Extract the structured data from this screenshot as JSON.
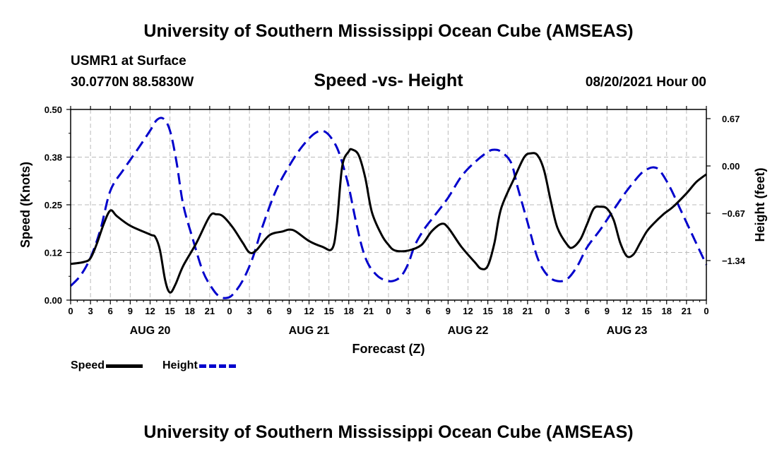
{
  "header": {
    "title": "University of Southern Mississippi Ocean Cube (AMSEAS)",
    "station": "USMR1 at Surface",
    "coords": "30.0770N  88.5830W",
    "chart_title": "Speed -vs- Height",
    "date": "08/20/2021 Hour 00"
  },
  "footer": {
    "title": "University of Southern Mississippi Ocean Cube (AMSEAS)"
  },
  "legend": {
    "speed": "Speed",
    "height": "Height"
  },
  "colors": {
    "speed": "#000000",
    "height": "#0000cc",
    "grid": "#bbbbbb"
  },
  "chart_data": {
    "type": "line",
    "title": "Speed -vs- Height",
    "xlabel": "Forecast (Z)",
    "ylabel": "Speed (Knots)",
    "y2label": "Height (feet)",
    "xlim": [
      0,
      96
    ],
    "ylim": [
      0,
      0.5
    ],
    "y2lim": [
      -1.9,
      0.8
    ],
    "grid": true,
    "x_ticks": [
      0,
      3,
      6,
      9,
      12,
      15,
      18,
      21,
      24,
      27,
      30,
      33,
      36,
      39,
      42,
      45,
      48,
      51,
      54,
      57,
      60,
      63,
      66,
      69,
      72,
      75,
      78,
      81,
      84,
      87,
      90,
      93,
      96
    ],
    "x_tick_labels": [
      "0",
      "3",
      "6",
      "9",
      "12",
      "15",
      "18",
      "21",
      "0",
      "3",
      "6",
      "9",
      "12",
      "15",
      "18",
      "21",
      "0",
      "3",
      "6",
      "9",
      "12",
      "15",
      "18",
      "21",
      "0",
      "3",
      "6",
      "9",
      "12",
      "15",
      "18",
      "21",
      "0"
    ],
    "day_labels": [
      {
        "x": 12,
        "label": "AUG 20"
      },
      {
        "x": 36,
        "label": "AUG 21"
      },
      {
        "x": 60,
        "label": "AUG 22"
      },
      {
        "x": 84,
        "label": "AUG 23"
      }
    ],
    "y_ticks": [
      0,
      0.125,
      0.25,
      0.375,
      0.5
    ],
    "y_tick_labels": [
      "0.00",
      "0.12",
      "0.25",
      "0.38",
      "0.50"
    ],
    "y2_ticks": [
      0.67,
      0.0,
      -0.67,
      -1.34
    ],
    "y2_tick_labels": [
      "0.67",
      "0.00",
      "−0.67",
      "−1.34"
    ],
    "legend_position": "bottom-left",
    "series": [
      {
        "name": "Speed",
        "axis": "left",
        "style": "solid",
        "points": [
          [
            0,
            0.095
          ],
          [
            2,
            0.1
          ],
          [
            3,
            0.11
          ],
          [
            4,
            0.15
          ],
          [
            5,
            0.2
          ],
          [
            6,
            0.235
          ],
          [
            7,
            0.22
          ],
          [
            9,
            0.195
          ],
          [
            12,
            0.172
          ],
          [
            12.8,
            0.165
          ],
          [
            13.5,
            0.13
          ],
          [
            14.3,
            0.05
          ],
          [
            15,
            0.02
          ],
          [
            15.8,
            0.04
          ],
          [
            17,
            0.09
          ],
          [
            19,
            0.15
          ],
          [
            21,
            0.22
          ],
          [
            22,
            0.225
          ],
          [
            23,
            0.22
          ],
          [
            24.5,
            0.19
          ],
          [
            26,
            0.15
          ],
          [
            27,
            0.125
          ],
          [
            28,
            0.13
          ],
          [
            30,
            0.17
          ],
          [
            32,
            0.18
          ],
          [
            33,
            0.185
          ],
          [
            34,
            0.18
          ],
          [
            36,
            0.155
          ],
          [
            38,
            0.14
          ],
          [
            39.5,
            0.135
          ],
          [
            40.2,
            0.2
          ],
          [
            41,
            0.35
          ],
          [
            42,
            0.39
          ],
          [
            42.5,
            0.395
          ],
          [
            43.5,
            0.38
          ],
          [
            44.5,
            0.32
          ],
          [
            45.5,
            0.23
          ],
          [
            47,
            0.17
          ],
          [
            48,
            0.145
          ],
          [
            49,
            0.13
          ],
          [
            51,
            0.13
          ],
          [
            53,
            0.145
          ],
          [
            54.5,
            0.18
          ],
          [
            56,
            0.2
          ],
          [
            57,
            0.19
          ],
          [
            59,
            0.14
          ],
          [
            61,
            0.1
          ],
          [
            62,
            0.082
          ],
          [
            63,
            0.09
          ],
          [
            64,
            0.15
          ],
          [
            65,
            0.24
          ],
          [
            67,
            0.32
          ],
          [
            68.5,
            0.375
          ],
          [
            69.5,
            0.385
          ],
          [
            70.5,
            0.38
          ],
          [
            71.5,
            0.34
          ],
          [
            72.5,
            0.26
          ],
          [
            73.5,
            0.19
          ],
          [
            75,
            0.145
          ],
          [
            75.8,
            0.138
          ],
          [
            77,
            0.16
          ],
          [
            78,
            0.2
          ],
          [
            79,
            0.24
          ],
          [
            80,
            0.245
          ],
          [
            81,
            0.24
          ],
          [
            82,
            0.21
          ],
          [
            83,
            0.15
          ],
          [
            84,
            0.115
          ],
          [
            85,
            0.12
          ],
          [
            86,
            0.15
          ],
          [
            87,
            0.18
          ],
          [
            88,
            0.2
          ],
          [
            89.5,
            0.225
          ],
          [
            91,
            0.245
          ],
          [
            93,
            0.28
          ],
          [
            94.5,
            0.31
          ],
          [
            96,
            0.33
          ]
        ]
      },
      {
        "name": "Height",
        "axis": "right",
        "style": "dashed",
        "points": [
          [
            0,
            -1.7
          ],
          [
            1.5,
            -1.55
          ],
          [
            3,
            -1.3
          ],
          [
            4.5,
            -0.9
          ],
          [
            6,
            -0.35
          ],
          [
            8,
            -0.05
          ],
          [
            10,
            0.22
          ],
          [
            12,
            0.5
          ],
          [
            13,
            0.65
          ],
          [
            14,
            0.67
          ],
          [
            15,
            0.5
          ],
          [
            16,
            0.05
          ],
          [
            17,
            -0.55
          ],
          [
            18.5,
            -1.05
          ],
          [
            20,
            -1.5
          ],
          [
            21.5,
            -1.75
          ],
          [
            22.5,
            -1.85
          ],
          [
            23.5,
            -1.87
          ],
          [
            24.5,
            -1.82
          ],
          [
            26,
            -1.62
          ],
          [
            27.5,
            -1.3
          ],
          [
            29,
            -0.85
          ],
          [
            31,
            -0.35
          ],
          [
            33,
            0.0
          ],
          [
            35,
            0.28
          ],
          [
            37,
            0.47
          ],
          [
            38.5,
            0.48
          ],
          [
            40,
            0.3
          ],
          [
            41,
            0.05
          ],
          [
            42,
            -0.3
          ],
          [
            43,
            -0.75
          ],
          [
            44,
            -1.15
          ],
          [
            45,
            -1.4
          ],
          [
            46.5,
            -1.57
          ],
          [
            48,
            -1.63
          ],
          [
            49,
            -1.62
          ],
          [
            50,
            -1.55
          ],
          [
            51,
            -1.38
          ],
          [
            52,
            -1.12
          ],
          [
            53.5,
            -0.88
          ],
          [
            55,
            -0.7
          ],
          [
            57,
            -0.45
          ],
          [
            59,
            -0.15
          ],
          [
            61,
            0.05
          ],
          [
            63,
            0.2
          ],
          [
            64,
            0.23
          ],
          [
            65,
            0.2
          ],
          [
            66.5,
            0.05
          ],
          [
            67.5,
            -0.3
          ],
          [
            69,
            -0.8
          ],
          [
            70.5,
            -1.3
          ],
          [
            72,
            -1.55
          ],
          [
            73.5,
            -1.63
          ],
          [
            75,
            -1.6
          ],
          [
            76.5,
            -1.42
          ],
          [
            78,
            -1.15
          ],
          [
            80,
            -0.9
          ],
          [
            82,
            -0.62
          ],
          [
            84,
            -0.35
          ],
          [
            86,
            -0.12
          ],
          [
            87,
            -0.05
          ],
          [
            88,
            -0.02
          ],
          [
            89,
            -0.07
          ],
          [
            90.5,
            -0.3
          ],
          [
            92,
            -0.6
          ],
          [
            93.5,
            -0.9
          ],
          [
            94.5,
            -1.1
          ],
          [
            96,
            -1.4
          ]
        ]
      }
    ]
  }
}
